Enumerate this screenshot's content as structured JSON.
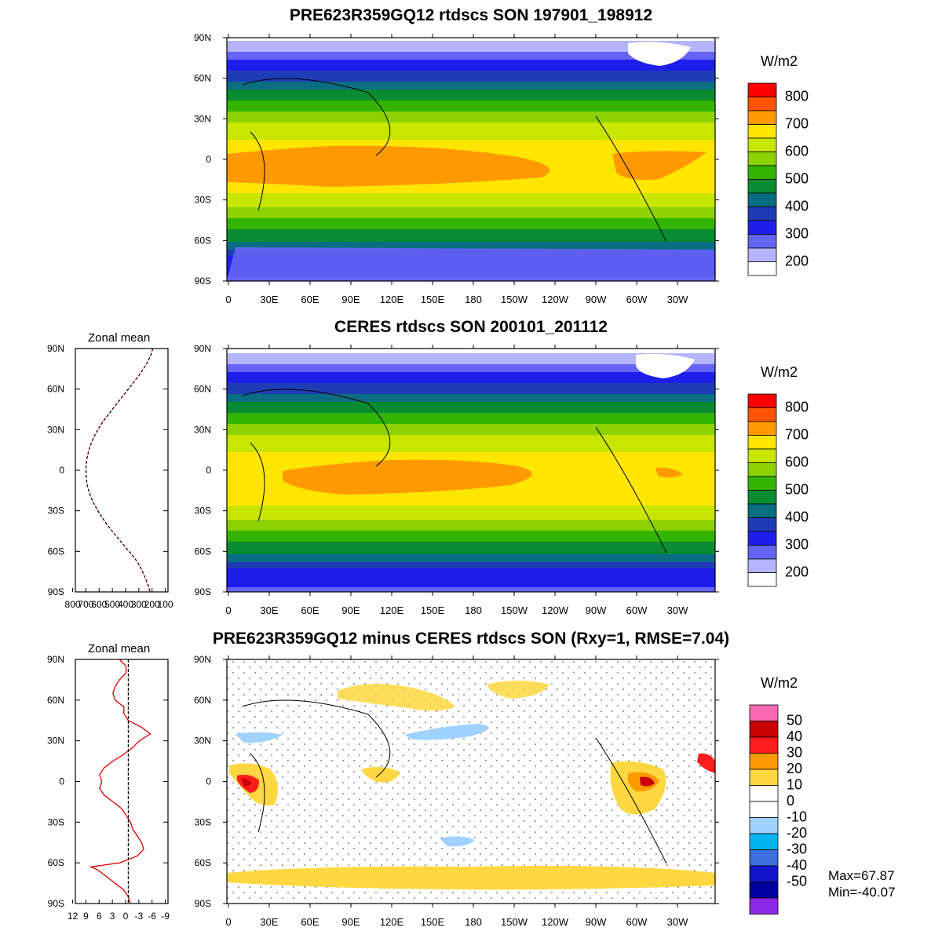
{
  "panels": [
    {
      "title": "PRE623R359GQ12 rtdscs SON 197901_198912",
      "units": "W/m2",
      "colorbar": {
        "labels": [
          "800",
          "700",
          "600",
          "500",
          "400",
          "300",
          "200"
        ],
        "colors": [
          "#ff0000",
          "#ff5500",
          "#ff9900",
          "#ffe600",
          "#c8e600",
          "#8cd200",
          "#32b400",
          "#0a8c32",
          "#0a6e82",
          "#1e3cb4",
          "#1e1eeb",
          "#6464f5",
          "#b4b4ff",
          "#ffffff"
        ]
      },
      "lat_labels": [
        "90N",
        "60N",
        "30N",
        "0",
        "30S",
        "60S",
        "90S"
      ],
      "lon_labels": [
        "0",
        "30E",
        "60E",
        "90E",
        "120E",
        "150E",
        "180",
        "150W",
        "120W",
        "90W",
        "60W",
        "30W"
      ]
    },
    {
      "title": "CERES rtdscs SON 200101_201112",
      "units": "W/m2",
      "colorbar": {
        "labels": [
          "800",
          "700",
          "600",
          "500",
          "400",
          "300",
          "200"
        ],
        "colors": [
          "#ff0000",
          "#ff5500",
          "#ff9900",
          "#ffe600",
          "#c8e600",
          "#8cd200",
          "#32b400",
          "#0a8c32",
          "#0a6e82",
          "#1e3cb4",
          "#1e1eeb",
          "#6464f5",
          "#b4b4ff",
          "#ffffff"
        ]
      },
      "lat_labels": [
        "90N",
        "60N",
        "30N",
        "0",
        "30S",
        "60S",
        "90S"
      ],
      "lon_labels": [
        "0",
        "30E",
        "60E",
        "90E",
        "120E",
        "150E",
        "180",
        "150W",
        "120W",
        "90W",
        "60W",
        "30W"
      ]
    },
    {
      "title": "PRE623R359GQ12 minus CERES rtdscs SON (Rxy=1, RMSE=7.04)",
      "units": "W/m2",
      "colorbar": {
        "labels": [
          "50",
          "40",
          "30",
          "20",
          "10",
          "0",
          "-10",
          "-20",
          "-30",
          "-40",
          "-50"
        ],
        "colors": [
          "#ff69b4",
          "#c80000",
          "#ff1e1e",
          "#ff9900",
          "#ffd740",
          "#ffffff",
          "#ffffff",
          "#a0d2ff",
          "#00b4f0",
          "#3c6edc",
          "#1414c8",
          "#0000a0",
          "#8c28e6"
        ]
      },
      "lat_labels": [
        "90N",
        "60N",
        "30N",
        "0",
        "30S",
        "60S",
        "90S"
      ],
      "lon_labels": [
        "0",
        "30E",
        "60E",
        "90E",
        "120E",
        "150E",
        "180",
        "150W",
        "120W",
        "90W",
        "60W",
        "30W"
      ],
      "stats": {
        "max": "Max=67.87",
        "min": "Min=-40.07"
      }
    }
  ],
  "zonal_panels": [
    {
      "title": "Zonal mean",
      "lat_labels": [
        "90N",
        "60N",
        "30N",
        "0",
        "30S",
        "60S",
        "90S"
      ],
      "x_labels": [
        "800",
        "700",
        "600",
        "500",
        "400",
        "300",
        "200",
        "100"
      ]
    },
    {
      "title": "Zonal mean",
      "lat_labels": [
        "90N",
        "60N",
        "30N",
        "0",
        "30S",
        "60S",
        "90S"
      ],
      "x_labels": [
        "12",
        "9",
        "6",
        "3",
        "0",
        "-3",
        "-6",
        "-9"
      ]
    }
  ],
  "chart_data": [
    {
      "type": "line",
      "panel": "zonal mean (middle)",
      "title": "Zonal mean",
      "xlim": [
        800,
        100
      ],
      "ylim": [
        -90,
        90
      ],
      "series": [
        {
          "lat": [
            90,
            85,
            80,
            75,
            70,
            65,
            60,
            55,
            50,
            45,
            40,
            35,
            30,
            25,
            20,
            15,
            10,
            5,
            0,
            -5,
            -10,
            -15,
            -20,
            -25,
            -30,
            -35,
            -40,
            -45,
            -50,
            -55,
            -60,
            -65,
            -70,
            -75,
            -80,
            -85,
            -90
          ],
          "values": [
            215,
            230,
            255,
            285,
            320,
            360,
            400,
            440,
            480,
            520,
            560,
            598,
            630,
            658,
            680,
            698,
            710,
            718,
            720,
            718,
            712,
            700,
            682,
            658,
            630,
            598,
            562,
            522,
            480,
            438,
            395,
            352,
            318,
            292,
            270,
            250,
            235
          ]
        }
      ]
    },
    {
      "type": "line",
      "panel": "zonal mean difference (bottom)",
      "title": "Zonal mean",
      "xlim": [
        12,
        -9
      ],
      "ylim": [
        -90,
        90
      ],
      "series": [
        {
          "lat": [
            90,
            85,
            80,
            75,
            70,
            65,
            60,
            55,
            50,
            45,
            40,
            35,
            30,
            25,
            20,
            15,
            10,
            5,
            0,
            -5,
            -10,
            -15,
            -20,
            -25,
            -30,
            -35,
            -40,
            -45,
            -50,
            -55,
            -60,
            -63,
            -65,
            -70,
            -75,
            -80,
            -85,
            -90
          ],
          "values": [
            2.0,
            0.5,
            0.5,
            2.0,
            3.0,
            3.5,
            3.0,
            1.0,
            1.0,
            0.0,
            -3.0,
            -5.0,
            -2.5,
            -1.0,
            1.0,
            3.5,
            5.5,
            6.5,
            6.0,
            6.5,
            5.5,
            3.5,
            1.5,
            0.5,
            -0.5,
            -1.0,
            -2.0,
            -3.0,
            -3.5,
            -2.0,
            2.0,
            8.5,
            7.0,
            5.0,
            3.0,
            1.0,
            0.0,
            -0.5
          ]
        },
        {
          "lat": [
            90,
            -90
          ],
          "values": [
            0,
            0
          ]
        }
      ]
    }
  ]
}
